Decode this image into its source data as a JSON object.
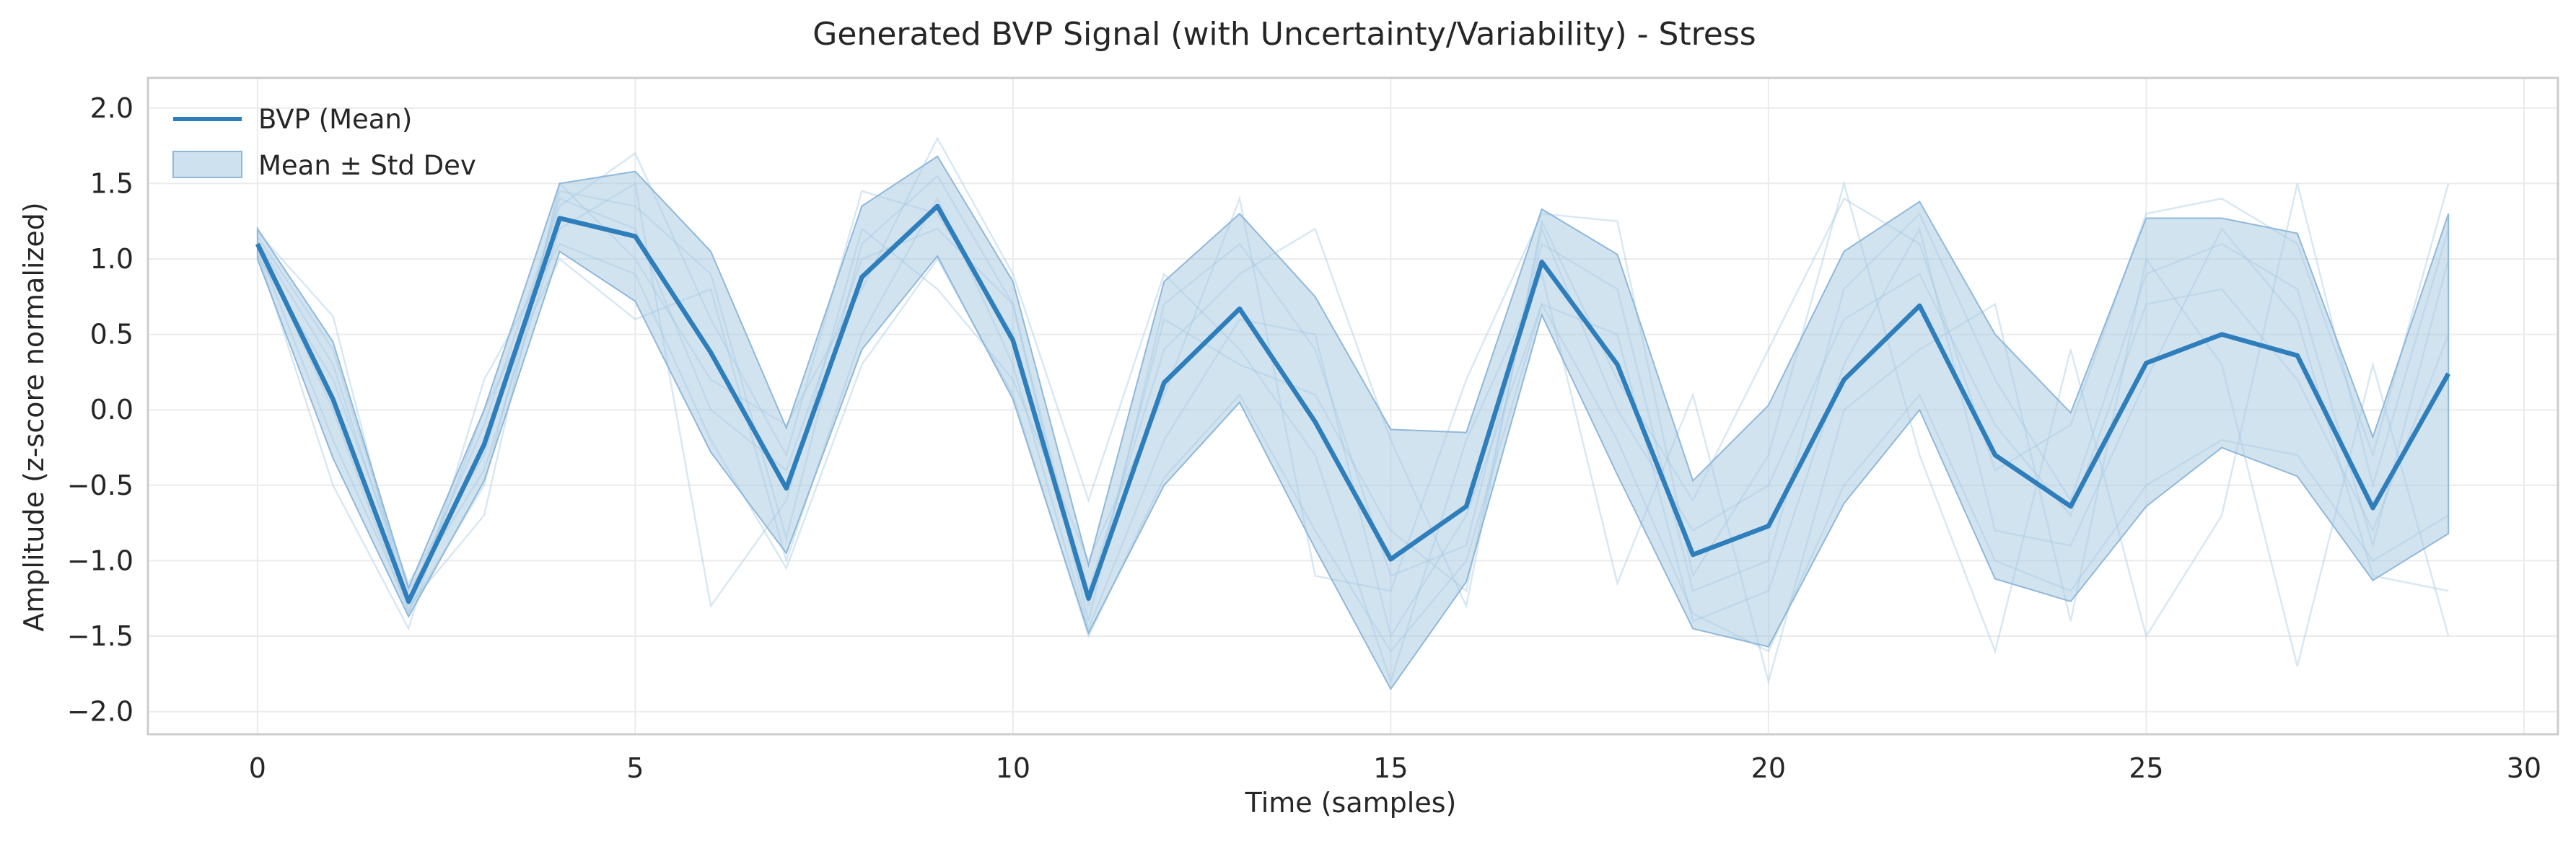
{
  "chart_data": {
    "type": "line",
    "title": "Generated BVP Signal (with Uncertainty/Variability) - Stress",
    "xlabel": "Time (samples)",
    "ylabel": "Amplitude (z-score normalized)",
    "xlim": [
      -1.45,
      30.45
    ],
    "ylim": [
      -2.15,
      2.2
    ],
    "xticks": [
      0,
      5,
      10,
      15,
      20,
      25,
      30
    ],
    "xtick_labels": [
      "0",
      "5",
      "10",
      "15",
      "20",
      "25",
      "30"
    ],
    "yticks": [
      2.0,
      1.5,
      1.0,
      0.5,
      0.0,
      -0.5,
      -1.0,
      -1.5,
      -2.0
    ],
    "ytick_labels": [
      "2.0",
      "1.5",
      "1.0",
      "0.5",
      "0.0",
      "−0.5",
      "−1.0",
      "−1.5",
      "−2.0"
    ],
    "grid": true,
    "legend_position": "top-left",
    "legend": [
      "BVP (Mean)",
      "Mean ± Std Dev"
    ],
    "colors": {
      "mean_line": "#2e7ebc",
      "band_fill": "#a6c8e2",
      "samples": "#a9cbe4",
      "grid": "#ebebeb",
      "axes": "#cccccc"
    },
    "x": [
      0,
      1,
      2,
      3,
      4,
      5,
      6,
      7,
      8,
      9,
      10,
      11,
      12,
      13,
      14,
      15,
      16,
      17,
      18,
      19,
      20,
      21,
      22,
      23,
      24,
      25,
      26,
      27,
      28,
      29
    ],
    "series": [
      {
        "name": "BVP (Mean)",
        "values": [
          1.1,
          0.07,
          -1.27,
          -0.23,
          1.27,
          1.15,
          0.38,
          -0.52,
          0.88,
          1.35,
          0.46,
          -1.25,
          0.18,
          0.67,
          -0.08,
          -0.99,
          -0.64,
          0.98,
          0.3,
          -0.96,
          -0.77,
          0.2,
          0.69,
          -0.3,
          -0.64,
          0.31,
          0.5,
          0.36,
          -0.65,
          0.24
        ]
      }
    ],
    "band": {
      "name": "Mean ± Std Dev",
      "upper": [
        1.2,
        0.45,
        -1.18,
        0.0,
        1.5,
        1.58,
        1.05,
        -0.12,
        1.35,
        1.68,
        0.85,
        -1.03,
        0.85,
        1.3,
        0.75,
        -0.13,
        -0.15,
        1.33,
        1.03,
        -0.47,
        0.03,
        1.05,
        1.38,
        0.5,
        -0.02,
        1.27,
        1.27,
        1.17,
        -0.18,
        1.3
      ],
      "lower": [
        1.0,
        -0.32,
        -1.37,
        -0.47,
        1.05,
        0.72,
        -0.28,
        -0.95,
        0.4,
        1.02,
        0.07,
        -1.48,
        -0.5,
        0.05,
        -0.92,
        -1.85,
        -1.14,
        0.63,
        -0.43,
        -1.45,
        -1.57,
        -0.62,
        0.0,
        -1.12,
        -1.27,
        -0.64,
        -0.25,
        -0.44,
        -1.13,
        -0.82
      ]
    },
    "samples": [
      [
        1.18,
        0.62,
        -1.33,
        -0.5,
        1.45,
        1.35,
        0.9,
        -0.85,
        1.1,
        1.55,
        0.7,
        -1.4,
        0.7,
        1.1,
        0.4,
        -1.1,
        -0.9,
        1.1,
        0.8,
        -1.2,
        -1.0,
        0.8,
        1.3,
        0.2,
        -0.6,
        0.9,
        1.1,
        0.8,
        -0.9,
        1.0
      ],
      [
        1.05,
        -0.5,
        -1.45,
        0.2,
        1.1,
        0.9,
        -0.2,
        -1.05,
        0.3,
        1.0,
        0.1,
        -1.5,
        -0.45,
        0.1,
        -0.8,
        -1.6,
        -1.0,
        0.7,
        -0.2,
        -1.35,
        -1.6,
        -0.5,
        0.1,
        -1.0,
        -1.2,
        -0.5,
        -0.2,
        -0.3,
        -1.0,
        -0.7
      ],
      [
        1.12,
        0.3,
        -1.25,
        -0.1,
        1.35,
        1.7,
        0.6,
        -0.3,
        1.45,
        1.3,
        0.5,
        -1.2,
        0.4,
        0.9,
        1.2,
        -0.2,
        -1.3,
        1.25,
        0.2,
        -0.6,
        0.4,
        1.4,
        1.1,
        -0.4,
        -0.1,
        1.3,
        1.4,
        1.1,
        -0.3,
        1.5
      ],
      [
        1.08,
        -0.2,
        -1.3,
        -0.7,
        1.5,
        1.0,
        0.2,
        -0.1,
        0.8,
        1.8,
        0.9,
        -0.6,
        0.9,
        0.4,
        -0.3,
        -1.8,
        -0.2,
        0.9,
        -1.15,
        0.1,
        -1.8,
        0.0,
        0.4,
        0.7,
        -1.4,
        1.0,
        0.3,
        -1.7,
        0.3,
        -1.5
      ],
      [
        1.15,
        0.4,
        -1.2,
        -0.4,
        1.2,
        1.5,
        -1.3,
        -0.6,
        1.2,
        0.8,
        0.2,
        -1.0,
        0.1,
        1.4,
        -1.1,
        -1.2,
        0.2,
        1.3,
        1.25,
        -1.1,
        -0.3,
        1.5,
        -0.3,
        -1.6,
        0.4,
        -1.5,
        -0.7,
        1.5,
        -0.5,
        1.2
      ],
      [
        1.1,
        0.0,
        -1.35,
        0.0,
        1.0,
        0.6,
        0.8,
        -1.0,
        0.5,
        1.4,
        0.3,
        -1.45,
        -0.2,
        0.6,
        0.5,
        -1.5,
        -0.7,
        0.7,
        0.5,
        -1.4,
        -1.2,
        0.3,
        1.2,
        -0.8,
        -0.9,
        0.2,
        1.2,
        0.6,
        -1.1,
        -1.2
      ],
      [
        1.02,
        0.2,
        -1.15,
        -0.3,
        1.4,
        1.2,
        0.0,
        -0.4,
        1.0,
        1.2,
        0.7,
        -1.3,
        0.6,
        0.3,
        0.1,
        -0.8,
        -1.2,
        1.2,
        0.0,
        -0.8,
        -0.5,
        0.6,
        0.9,
        -0.1,
        -0.7,
        0.7,
        0.8,
        0.2,
        -0.8,
        0.5
      ]
    ]
  }
}
